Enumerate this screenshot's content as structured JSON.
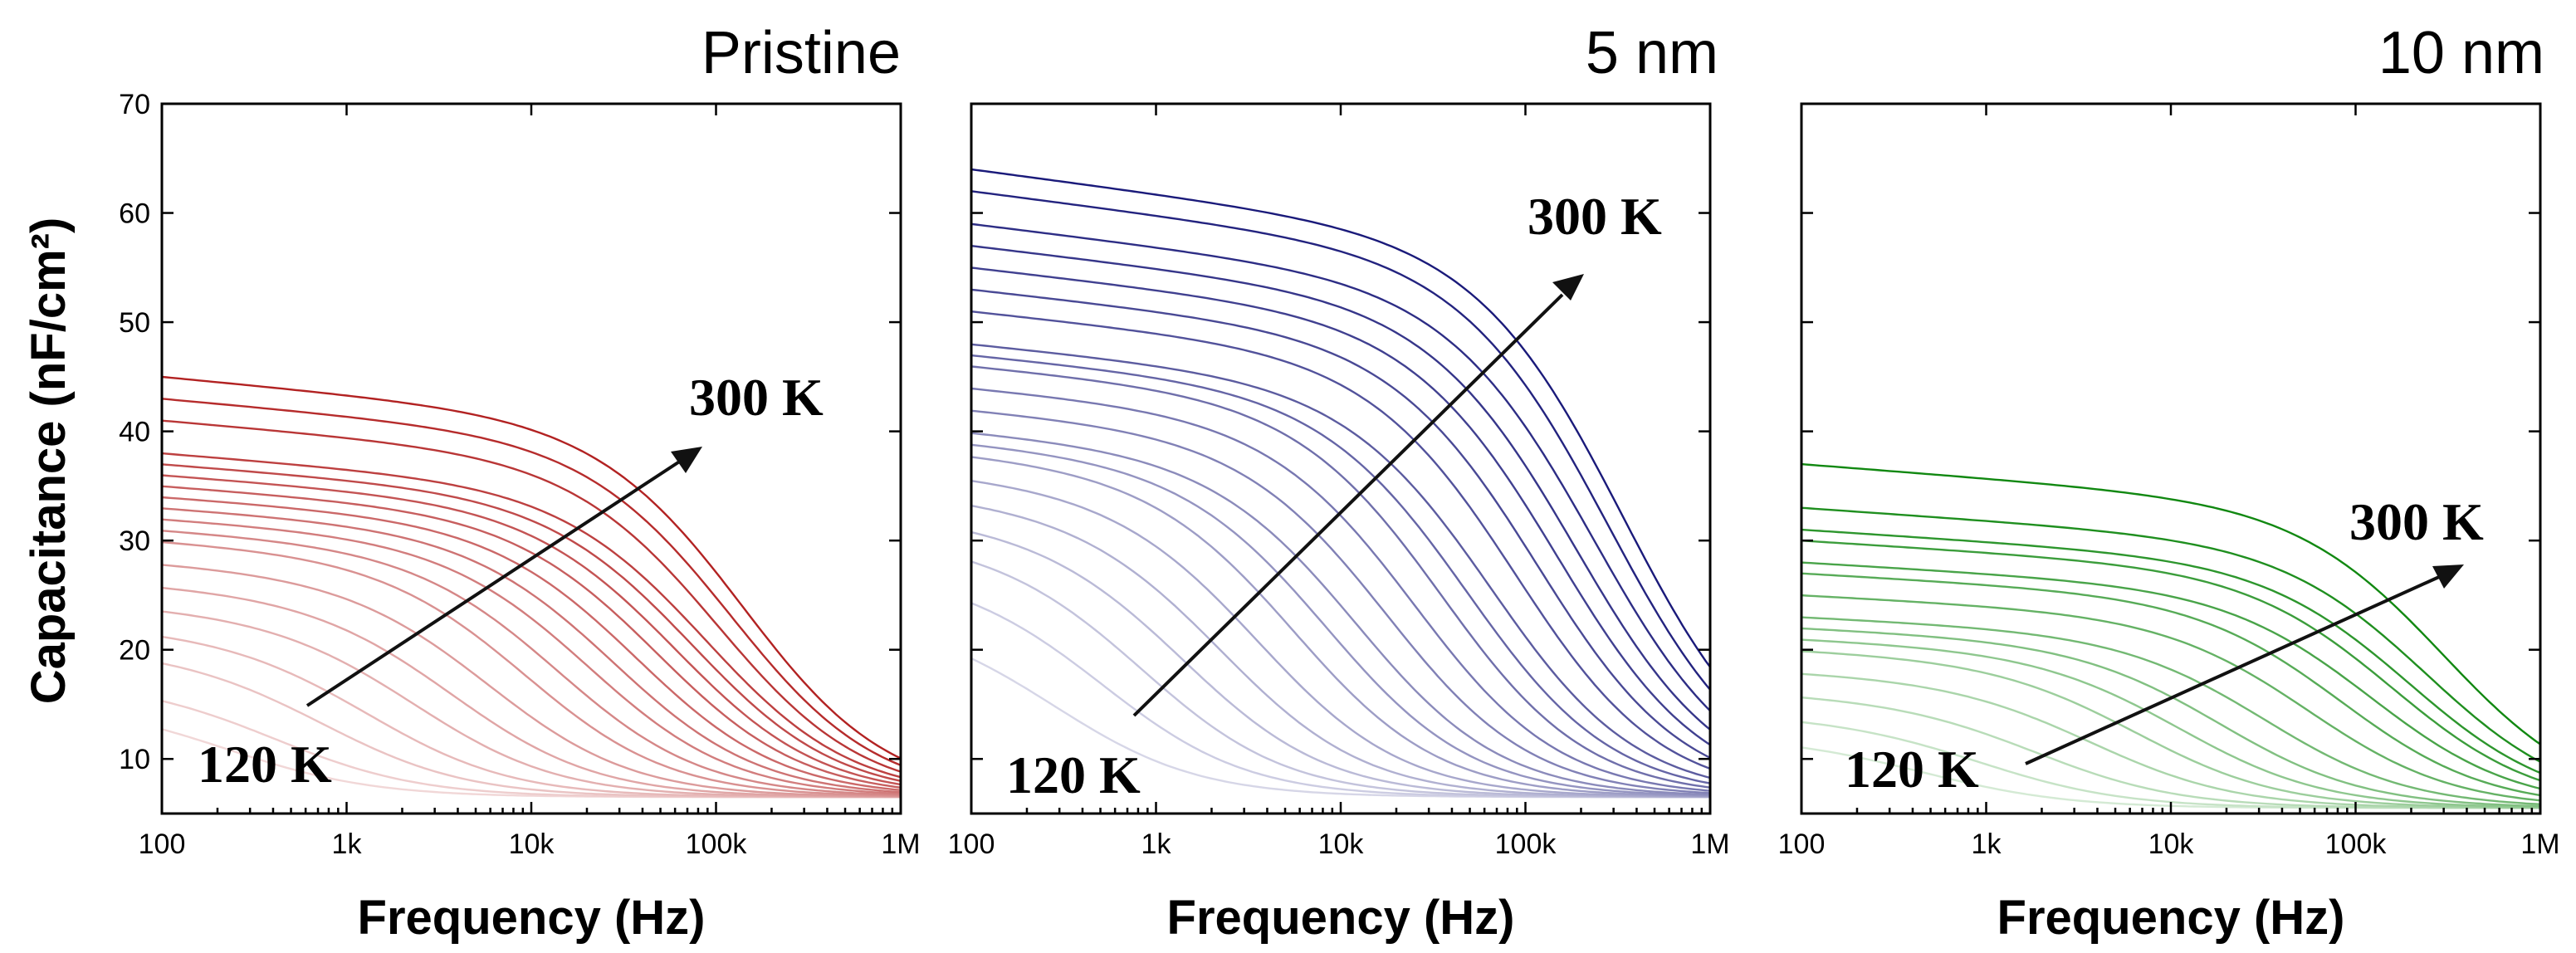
{
  "chart_data": {
    "type": "line",
    "xlabel": "Frequency (Hz)",
    "ylabel": "Capacitance (nF/cm²)",
    "x_scale": "log",
    "xlim": [
      100,
      1000000
    ],
    "ylim": [
      5,
      70
    ],
    "x_ticks": [
      100,
      1000,
      10000,
      100000,
      1000000
    ],
    "x_tick_labels": [
      "100",
      "1k",
      "10k",
      "100k",
      "1M"
    ],
    "y_ticks": [
      10,
      20,
      30,
      40,
      50,
      60,
      70
    ],
    "y_tick_labels": [
      "10",
      "20",
      "30",
      "40",
      "50",
      "60",
      "70"
    ],
    "temperature_range": [
      "120 K",
      "300 K"
    ],
    "panels": [
      {
        "title": "Pristine",
        "color": "#b22222",
        "low_temp_label": "120 K",
        "high_temp_label": "300 K",
        "n_curves": 19,
        "low_freq_capacitance": [
          15,
          17,
          20,
          22,
          24,
          26,
          28,
          30,
          31,
          32,
          33,
          34,
          35,
          36,
          37,
          38,
          41,
          43,
          45
        ],
        "rolloff_freq_hz": [
          250,
          450,
          800,
          1400,
          2500,
          4000,
          6300,
          10000,
          15000,
          22000,
          30000,
          40000,
          52000,
          65000,
          80000,
          95000,
          110000,
          130000,
          150000
        ],
        "high_freq_limit_capacitance": 6.5
      },
      {
        "title": "5 nm",
        "color": "#1a1a7a",
        "low_temp_label": "120 K",
        "high_temp_label": "300 K",
        "n_curves": 21,
        "low_freq_capacitance": [
          23,
          27,
          30,
          32,
          34,
          36,
          38,
          39,
          40,
          42,
          44,
          46,
          47,
          48,
          51,
          53,
          55,
          57,
          59,
          62,
          64
        ],
        "rolloff_freq_hz": [
          300,
          550,
          900,
          1500,
          2400,
          3800,
          6000,
          9000,
          13000,
          19000,
          27000,
          38000,
          52000,
          70000,
          95000,
          125000,
          160000,
          200000,
          250000,
          300000,
          360000
        ],
        "high_freq_limit_capacitance": 6.5
      },
      {
        "title": "10 nm",
        "color": "#118811",
        "low_temp_label": "120 K",
        "high_temp_label": "300 K",
        "n_curves": 15,
        "low_freq_capacitance": [
          12,
          14,
          16,
          18,
          20,
          21,
          22,
          23,
          25,
          27,
          28,
          30,
          31,
          33,
          37
        ],
        "rolloff_freq_hz": [
          500,
          1000,
          2000,
          4000,
          7000,
          12000,
          20000,
          35000,
          60000,
          90000,
          130000,
          170000,
          210000,
          260000,
          320000
        ],
        "high_freq_limit_capacitance": 5.5
      }
    ]
  }
}
